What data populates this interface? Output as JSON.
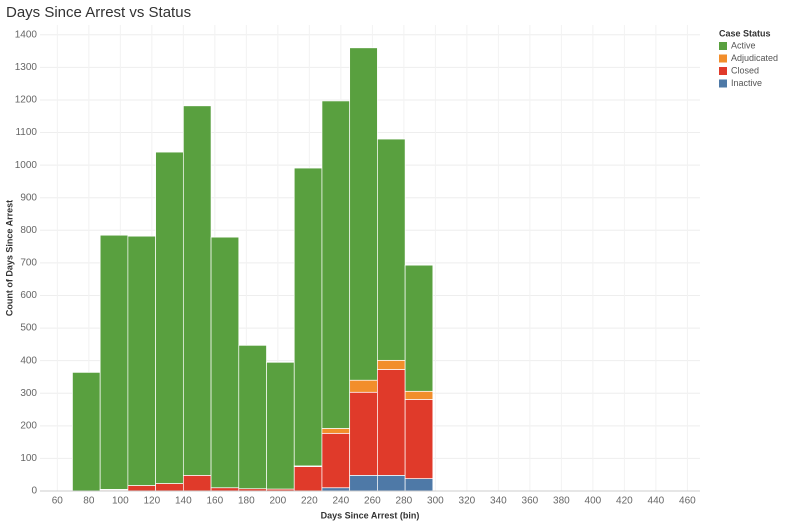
{
  "chart_data": {
    "type": "histogram",
    "title": "Days Since Arrest vs Status",
    "x_label": "Days Since Arrest (bin)",
    "y_label": "Count of Days Since Arrest",
    "legend_title": "Case Status",
    "bins": [
      69.6,
      87.2,
      104.8,
      122.4,
      140,
      157.6,
      175.2,
      192.8,
      210.4,
      228,
      245.6,
      263.2,
      280.8,
      298.4
    ],
    "series": [
      {
        "name": "Inactive",
        "color": "#4e79a7",
        "values": [
          0,
          0,
          0,
          0,
          0,
          0,
          0,
          0,
          0,
          10,
          48,
          48,
          38
        ]
      },
      {
        "name": "Closed",
        "color": "#e03a2a",
        "values": [
          0,
          3,
          17,
          23,
          48,
          10,
          7,
          6,
          75,
          167,
          255,
          325,
          243
        ]
      },
      {
        "name": "Adjudicated",
        "color": "#f28e2b",
        "values": [
          0,
          2,
          0,
          0,
          0,
          0,
          0,
          0,
          2,
          15,
          37,
          28,
          25
        ]
      },
      {
        "name": "Active",
        "color": "#59a03f",
        "values": [
          364,
          780,
          765,
          1017,
          1134,
          769,
          440,
          389,
          914,
          1005,
          1020,
          679,
          387
        ]
      }
    ],
    "legend_order": [
      "Active",
      "Adjudicated",
      "Closed",
      "Inactive"
    ],
    "xlim": [
      49,
      468
    ],
    "ylim": [
      0,
      1430
    ],
    "xticks": [
      60,
      80,
      100,
      120,
      140,
      160,
      180,
      200,
      220,
      240,
      260,
      280,
      300,
      320,
      340,
      360,
      380,
      400,
      420,
      440,
      460
    ],
    "yticks": [
      0,
      100,
      200,
      300,
      400,
      500,
      600,
      700,
      800,
      900,
      1000,
      1100,
      1200,
      1300,
      1400
    ],
    "grid": true
  }
}
